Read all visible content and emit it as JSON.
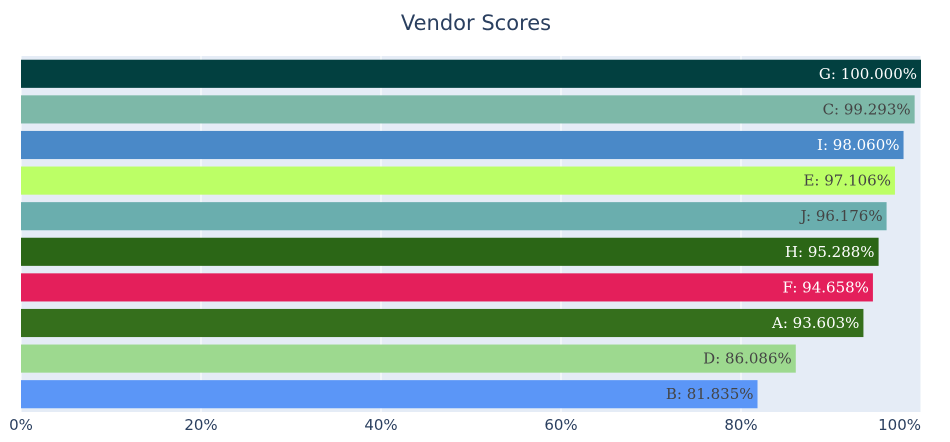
{
  "chart_data": {
    "type": "bar",
    "orientation": "horizontal",
    "title": "Vendor Scores",
    "xlabel": "",
    "ylabel": "",
    "xlim": [
      0,
      100
    ],
    "x_ticks": [
      "0%",
      "20%",
      "40%",
      "60%",
      "80%",
      "100%"
    ],
    "x_tick_values": [
      0,
      20,
      40,
      60,
      80,
      100
    ],
    "grid": true,
    "plot_background": "#e5ecf6",
    "bars": [
      {
        "category": "G",
        "value": 100.0,
        "label": "G: 100.000%",
        "color": "#024040",
        "label_color": "#ffffff"
      },
      {
        "category": "C",
        "value": 99.293,
        "label": "C: 99.293%",
        "color": "#7db8a8",
        "label_color": "#444444"
      },
      {
        "category": "I",
        "value": 98.06,
        "label": "I: 98.060%",
        "color": "#4a89c8",
        "label_color": "#ffffff"
      },
      {
        "category": "E",
        "value": 97.106,
        "label": "E: 97.106%",
        "color": "#bcff66",
        "label_color": "#444444"
      },
      {
        "category": "J",
        "value": 96.176,
        "label": "J: 96.176%",
        "color": "#6aaeae",
        "label_color": "#444444"
      },
      {
        "category": "H",
        "value": 95.288,
        "label": "H: 95.288%",
        "color": "#2b6616",
        "label_color": "#ffffff"
      },
      {
        "category": "F",
        "value": 94.658,
        "label": "F: 94.658%",
        "color": "#e41f5b",
        "label_color": "#ffffff"
      },
      {
        "category": "A",
        "value": 93.603,
        "label": "A: 93.603%",
        "color": "#356f1c",
        "label_color": "#ffffff"
      },
      {
        "category": "D",
        "value": 86.086,
        "label": "D: 86.086%",
        "color": "#9dd98f",
        "label_color": "#444444"
      },
      {
        "category": "B",
        "value": 81.835,
        "label": "B: 81.835%",
        "color": "#5b96f7",
        "label_color": "#444444"
      }
    ]
  }
}
